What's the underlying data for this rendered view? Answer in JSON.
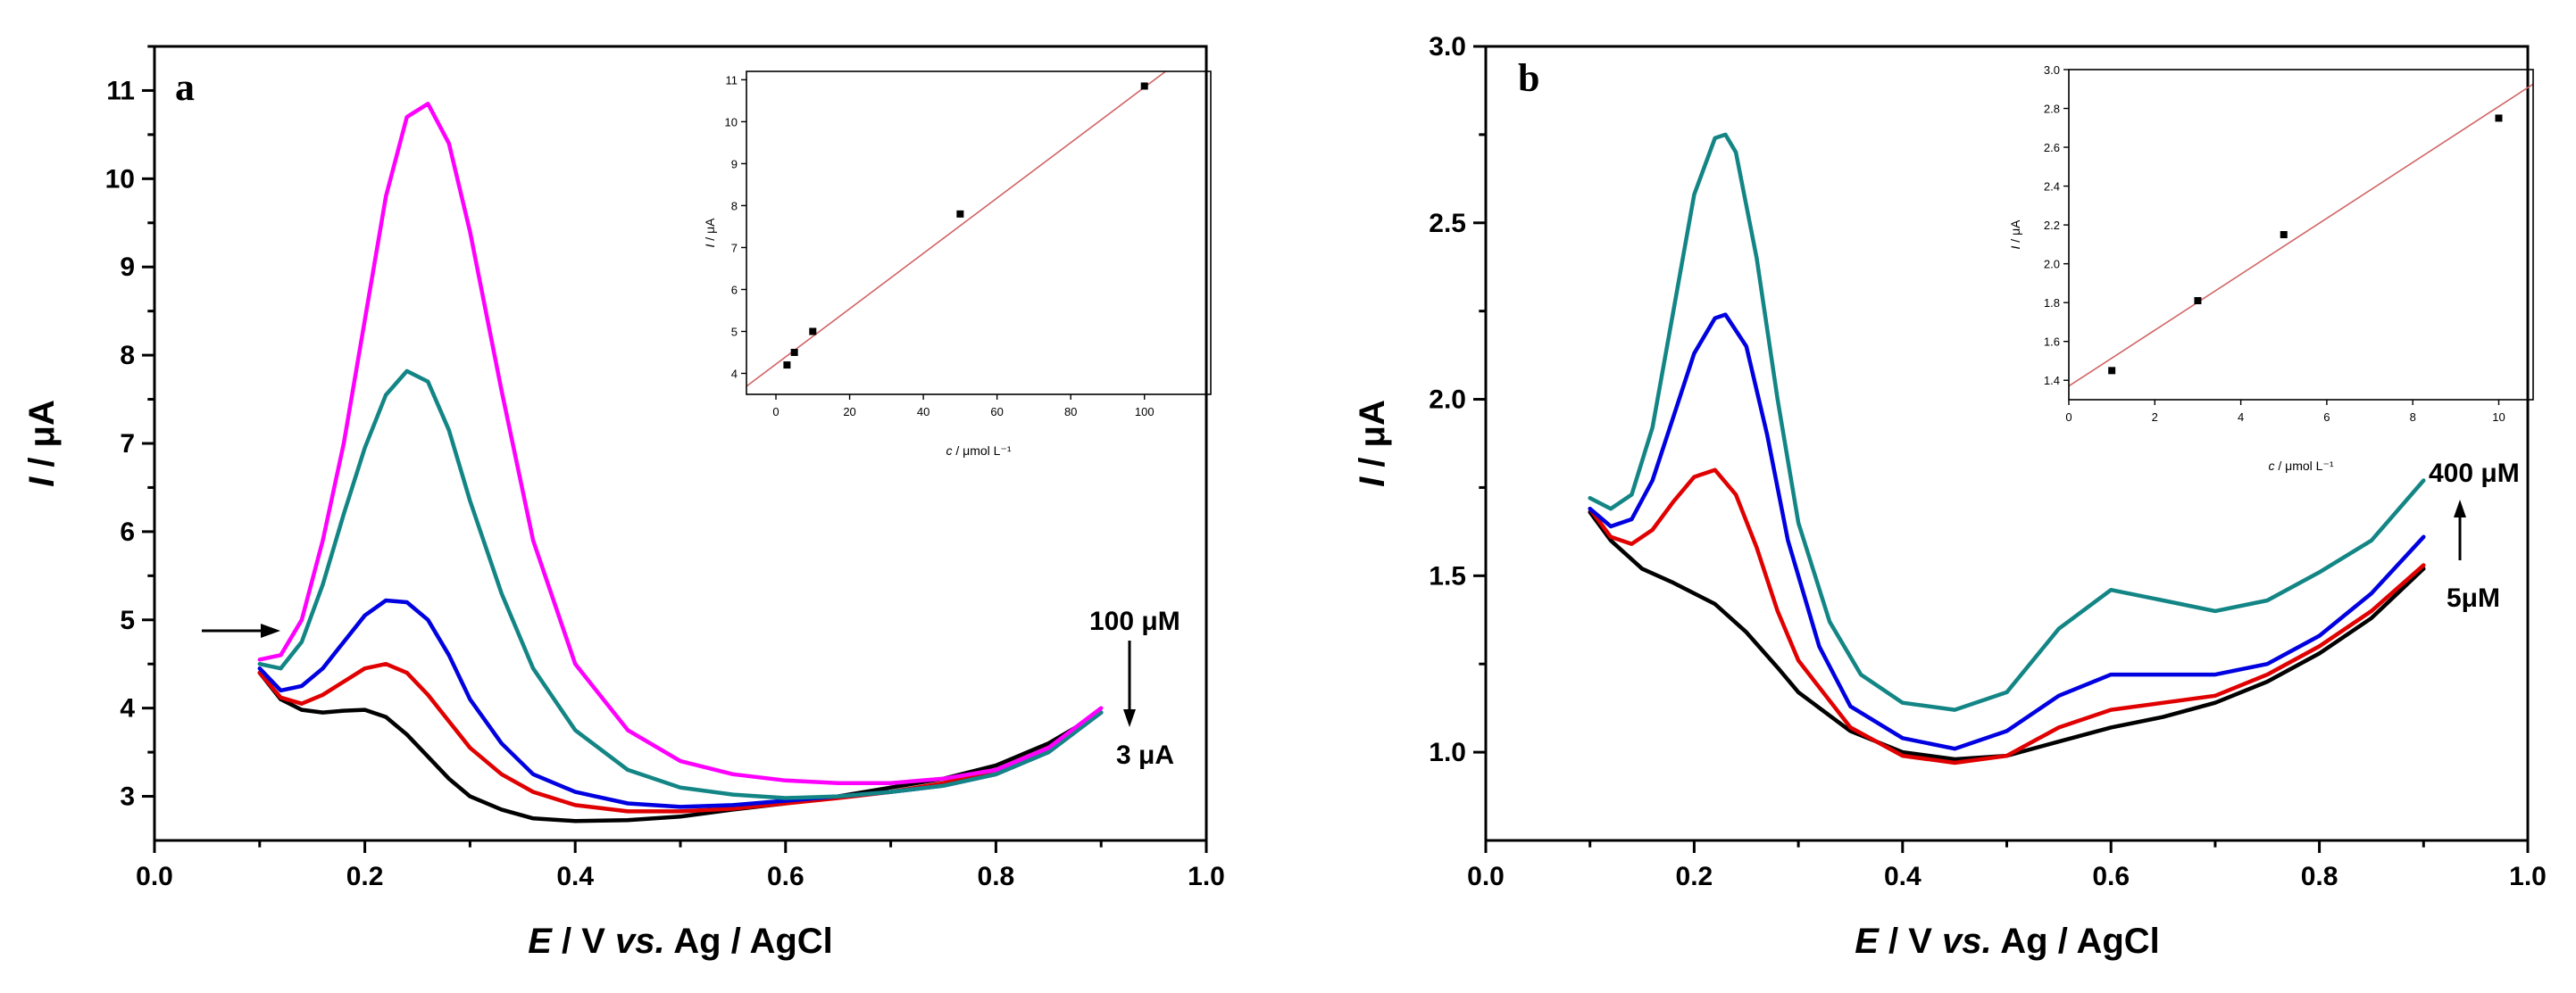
{
  "chart_data": [
    {
      "panel": "a",
      "type": "line",
      "xlabel_var": "E",
      "xlabel_rest": " / V ",
      "xlabel_vs": "vs.",
      "xlabel_ref": " Ag / AgCl",
      "ylabel_var": "I",
      "ylabel_rest": " / μA",
      "xlim": [
        0.0,
        1.0
      ],
      "ylim": [
        2.5,
        11.5
      ],
      "xticks": [
        "0.0",
        "0.2",
        "0.4",
        "0.6",
        "0.8",
        "1.0"
      ],
      "yticks": [
        "3",
        "4",
        "5",
        "6",
        "7",
        "8",
        "9",
        "10",
        "11"
      ],
      "colors": [
        "#000000",
        "#e00000",
        "#0000e0",
        "#138585",
        "#ff00ff"
      ],
      "series": [
        {
          "name": "3 μA",
          "color": "#000000",
          "x": [
            0.1,
            0.12,
            0.14,
            0.16,
            0.18,
            0.2,
            0.22,
            0.24,
            0.26,
            0.28,
            0.3,
            0.33,
            0.36,
            0.4,
            0.45,
            0.5,
            0.55,
            0.6,
            0.65,
            0.7,
            0.75,
            0.8,
            0.85,
            0.9
          ],
          "y": [
            4.4,
            4.1,
            3.98,
            3.95,
            3.97,
            3.98,
            3.9,
            3.7,
            3.45,
            3.2,
            3.0,
            2.85,
            2.75,
            2.72,
            2.73,
            2.77,
            2.85,
            2.92,
            3.0,
            3.1,
            3.2,
            3.35,
            3.6,
            3.95
          ]
        },
        {
          "name": "",
          "color": "#e00000",
          "x": [
            0.1,
            0.12,
            0.14,
            0.16,
            0.18,
            0.2,
            0.22,
            0.24,
            0.26,
            0.28,
            0.3,
            0.33,
            0.36,
            0.4,
            0.45,
            0.5,
            0.55,
            0.6,
            0.65,
            0.7,
            0.75,
            0.8,
            0.85,
            0.9
          ],
          "y": [
            4.4,
            4.12,
            4.05,
            4.15,
            4.3,
            4.45,
            4.5,
            4.4,
            4.15,
            3.85,
            3.55,
            3.25,
            3.05,
            2.9,
            2.83,
            2.83,
            2.86,
            2.92,
            2.98,
            3.05,
            3.15,
            3.3,
            3.55,
            3.95
          ]
        },
        {
          "name": "",
          "color": "#0000e0",
          "x": [
            0.1,
            0.12,
            0.14,
            0.16,
            0.18,
            0.2,
            0.22,
            0.24,
            0.26,
            0.28,
            0.3,
            0.33,
            0.36,
            0.4,
            0.45,
            0.5,
            0.55,
            0.6,
            0.65,
            0.7,
            0.75,
            0.8,
            0.85,
            0.9
          ],
          "y": [
            4.45,
            4.2,
            4.25,
            4.45,
            4.75,
            5.05,
            5.22,
            5.2,
            5.0,
            4.6,
            4.1,
            3.6,
            3.25,
            3.05,
            2.92,
            2.88,
            2.9,
            2.95,
            3.0,
            3.05,
            3.12,
            3.25,
            3.5,
            3.95
          ]
        },
        {
          "name": "",
          "color": "#138585",
          "x": [
            0.1,
            0.12,
            0.14,
            0.16,
            0.18,
            0.2,
            0.22,
            0.24,
            0.26,
            0.28,
            0.3,
            0.33,
            0.36,
            0.4,
            0.45,
            0.5,
            0.55,
            0.6,
            0.65,
            0.7,
            0.75,
            0.8,
            0.85,
            0.9
          ],
          "y": [
            4.5,
            4.45,
            4.75,
            5.4,
            6.2,
            6.95,
            7.55,
            7.82,
            7.7,
            7.15,
            6.35,
            5.3,
            4.45,
            3.75,
            3.3,
            3.1,
            3.02,
            2.98,
            3.0,
            3.05,
            3.12,
            3.25,
            3.5,
            3.95
          ]
        },
        {
          "name": "100 μM",
          "color": "#ff00ff",
          "x": [
            0.1,
            0.12,
            0.14,
            0.16,
            0.18,
            0.2,
            0.22,
            0.24,
            0.26,
            0.28,
            0.3,
            0.33,
            0.36,
            0.4,
            0.45,
            0.5,
            0.55,
            0.6,
            0.65,
            0.7,
            0.75,
            0.8,
            0.85,
            0.9
          ],
          "y": [
            4.55,
            4.6,
            5.0,
            5.9,
            7.0,
            8.4,
            9.8,
            10.7,
            10.85,
            10.4,
            9.4,
            7.6,
            5.9,
            4.5,
            3.75,
            3.4,
            3.25,
            3.18,
            3.15,
            3.15,
            3.2,
            3.3,
            3.55,
            4.0
          ]
        }
      ],
      "annotations": {
        "top": "100 μM",
        "bottom": "3 μA"
      },
      "inset": {
        "type": "scatter",
        "xlabel_var": "c",
        "xlabel_rest": " / μmol L⁻¹",
        "ylabel_var": "I",
        "ylabel_rest": " / μA",
        "xlim": [
          -8,
          118
        ],
        "ylim": [
          3.5,
          11.2
        ],
        "xticks": [
          "0",
          "20",
          "40",
          "60",
          "80",
          "100"
        ],
        "yticks": [
          "4",
          "5",
          "6",
          "7",
          "8",
          "9",
          "10",
          "11"
        ],
        "points": [
          [
            3,
            4.2
          ],
          [
            5,
            4.5
          ],
          [
            10,
            5.0
          ],
          [
            50,
            7.8
          ],
          [
            100,
            10.85
          ]
        ],
        "fit": {
          "slope": 0.066,
          "intercept": 4.22,
          "color": "#d06464"
        }
      }
    },
    {
      "panel": "b",
      "type": "line",
      "xlabel_var": "E",
      "xlabel_rest": " / V ",
      "xlabel_vs": "vs.",
      "xlabel_ref": " Ag / AgCl",
      "ylabel_var": "I",
      "ylabel_rest": " / μA",
      "xlim": [
        0.0,
        1.0
      ],
      "ylim": [
        0.75,
        3.0
      ],
      "xticks": [
        "0.0",
        "0.2",
        "0.4",
        "0.6",
        "0.8",
        "1.0"
      ],
      "yticks": [
        "1.0",
        "1.5",
        "2.0",
        "2.5",
        "3.0"
      ],
      "colors": [
        "#000000",
        "#e00000",
        "#0000e0",
        "#138585"
      ],
      "series": [
        {
          "name": "5μM",
          "color": "#000000",
          "x": [
            0.1,
            0.12,
            0.15,
            0.18,
            0.2,
            0.22,
            0.25,
            0.28,
            0.3,
            0.35,
            0.4,
            0.45,
            0.5,
            0.55,
            0.6,
            0.65,
            0.7,
            0.75,
            0.8,
            0.85,
            0.9
          ],
          "y": [
            1.68,
            1.6,
            1.52,
            1.48,
            1.45,
            1.42,
            1.34,
            1.24,
            1.17,
            1.06,
            1.0,
            0.98,
            0.99,
            1.03,
            1.07,
            1.1,
            1.14,
            1.2,
            1.28,
            1.38,
            1.52
          ]
        },
        {
          "name": "",
          "color": "#e00000",
          "x": [
            0.1,
            0.12,
            0.14,
            0.16,
            0.18,
            0.2,
            0.22,
            0.24,
            0.26,
            0.28,
            0.3,
            0.35,
            0.4,
            0.45,
            0.5,
            0.55,
            0.6,
            0.65,
            0.7,
            0.75,
            0.8,
            0.85,
            0.9
          ],
          "y": [
            1.69,
            1.61,
            1.59,
            1.63,
            1.71,
            1.78,
            1.8,
            1.73,
            1.58,
            1.4,
            1.26,
            1.07,
            0.99,
            0.97,
            0.99,
            1.07,
            1.12,
            1.14,
            1.16,
            1.22,
            1.3,
            1.4,
            1.53
          ]
        },
        {
          "name": "",
          "color": "#0000e0",
          "x": [
            0.1,
            0.12,
            0.14,
            0.16,
            0.18,
            0.2,
            0.22,
            0.23,
            0.25,
            0.27,
            0.29,
            0.32,
            0.35,
            0.4,
            0.45,
            0.5,
            0.55,
            0.6,
            0.65,
            0.7,
            0.75,
            0.8,
            0.85,
            0.9
          ],
          "y": [
            1.69,
            1.64,
            1.66,
            1.77,
            1.95,
            2.13,
            2.23,
            2.24,
            2.15,
            1.9,
            1.6,
            1.3,
            1.13,
            1.04,
            1.01,
            1.06,
            1.16,
            1.22,
            1.22,
            1.22,
            1.25,
            1.33,
            1.45,
            1.61
          ]
        },
        {
          "name": "400 μM",
          "color": "#138585",
          "x": [
            0.1,
            0.12,
            0.14,
            0.16,
            0.18,
            0.2,
            0.22,
            0.23,
            0.24,
            0.26,
            0.28,
            0.3,
            0.33,
            0.36,
            0.4,
            0.45,
            0.5,
            0.55,
            0.6,
            0.65,
            0.7,
            0.75,
            0.8,
            0.85,
            0.9
          ],
          "y": [
            1.72,
            1.69,
            1.73,
            1.92,
            2.25,
            2.58,
            2.74,
            2.75,
            2.7,
            2.4,
            2.0,
            1.65,
            1.37,
            1.22,
            1.14,
            1.12,
            1.17,
            1.35,
            1.46,
            1.43,
            1.4,
            1.43,
            1.51,
            1.6,
            1.77
          ]
        }
      ],
      "annotations": {
        "top": "400 μM",
        "bottom": "5μM"
      },
      "inset": {
        "type": "scatter",
        "xlabel_var": "c",
        "xlabel_rest": " / μmol L⁻¹",
        "ylabel_var": "I",
        "ylabel_rest": " / μA",
        "xlim": [
          0,
          10.8
        ],
        "ylim": [
          1.3,
          3.0
        ],
        "xticks": [
          "0",
          "2",
          "4",
          "6",
          "8",
          "10"
        ],
        "yticks": [
          "1.4",
          "1.6",
          "1.8",
          "2.0",
          "2.2",
          "2.4",
          "2.6",
          "2.8",
          "3.0"
        ],
        "points": [
          [
            1,
            1.45
          ],
          [
            3,
            1.81
          ],
          [
            5,
            2.15
          ],
          [
            10,
            2.75
          ]
        ],
        "fit": {
          "slope": 0.144,
          "intercept": 1.37,
          "color": "#d06464"
        }
      }
    }
  ]
}
